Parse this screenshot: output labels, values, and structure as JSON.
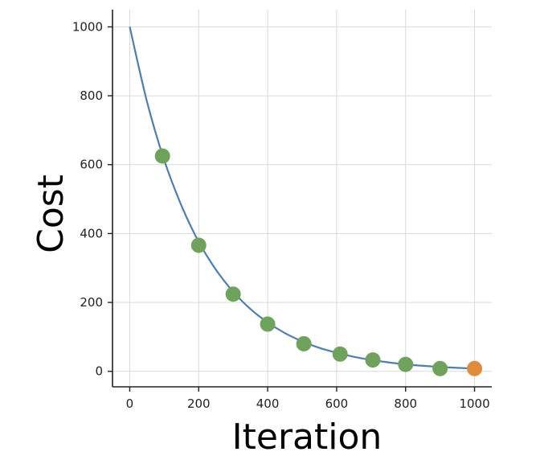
{
  "chart_data": {
    "type": "line",
    "xlabel": "Iteration",
    "ylabel": "Cost",
    "xlim": [
      -50,
      1050
    ],
    "ylim": [
      -45,
      1050
    ],
    "xticks": [
      0,
      200,
      400,
      600,
      800,
      1000
    ],
    "yticks": [
      0,
      200,
      400,
      600,
      800,
      1000
    ],
    "xtick_labels": [
      "0",
      "200",
      "400",
      "600",
      "800",
      "1000"
    ],
    "ytick_labels": [
      "0",
      "200",
      "400",
      "600",
      "800",
      "1000"
    ],
    "grid": true,
    "curve": {
      "x": [
        0,
        50,
        100,
        150,
        200,
        250,
        300,
        350,
        400,
        450,
        500,
        550,
        600,
        650,
        700,
        750,
        800,
        850,
        900,
        950,
        1000
      ],
      "y": [
        1000,
        783,
        613,
        481,
        376,
        295,
        231,
        181,
        142,
        111,
        87,
        68,
        54,
        42,
        33,
        26,
        20,
        16,
        13,
        10,
        8
      ]
    },
    "points": {
      "x": [
        95,
        200,
        300,
        400,
        505,
        610,
        705,
        800,
        900
      ],
      "y": [
        625,
        366,
        224,
        137,
        80,
        50,
        33,
        20,
        8
      ]
    },
    "final_point": {
      "x": 1000,
      "y": 8
    },
    "colors": {
      "line": "#4a7fb5",
      "points": "#6fa25a",
      "final_point": "#e08a3c",
      "grid": "#d9d9d9",
      "axis": "#222222"
    }
  }
}
